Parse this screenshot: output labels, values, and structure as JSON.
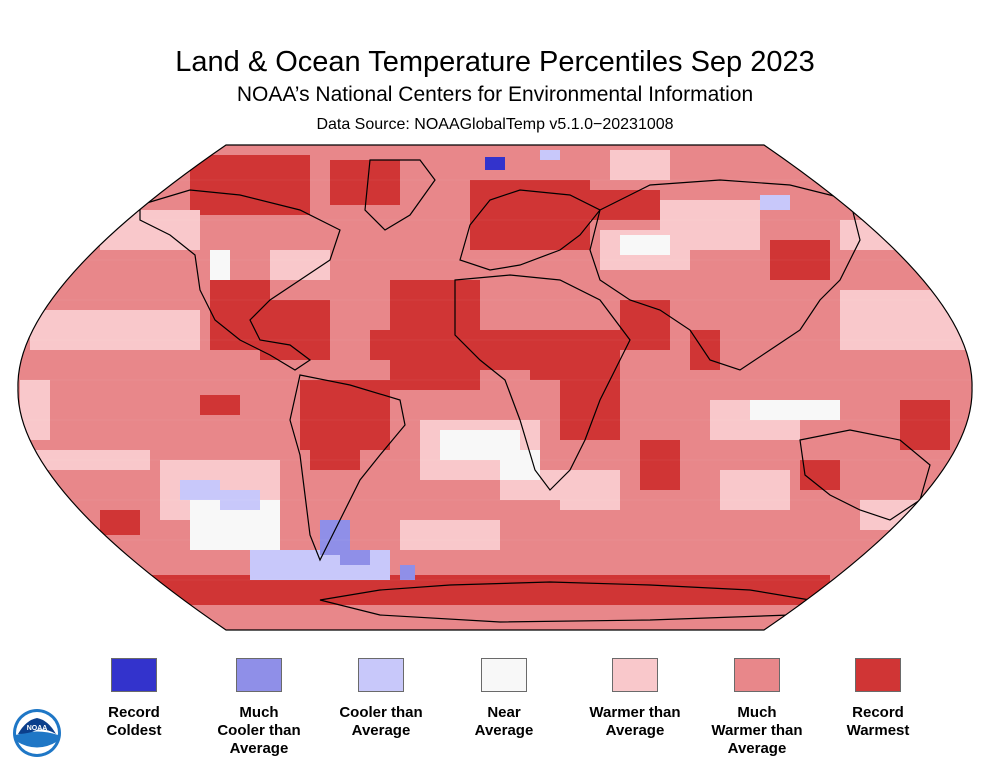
{
  "header": {
    "title": "Land & Ocean Temperature Percentiles Sep 2023",
    "subtitle": "NOAA’s National Centers for Environmental Information",
    "data_source": "Data Source: NOAAGlobalTemp v5.1.0−20231008"
  },
  "legend": [
    {
      "lines": [
        "Record",
        "Coldest"
      ],
      "color": "#3333cc"
    },
    {
      "lines": [
        "Much",
        "Cooler than",
        "Average"
      ],
      "color": "#8f8fe8"
    },
    {
      "lines": [
        "Cooler than",
        "Average"
      ],
      "color": "#c8c8fa"
    },
    {
      "lines": [
        "Near",
        "Average"
      ],
      "color": "#f8f8f8"
    },
    {
      "lines": [
        "Warmer than",
        "Average"
      ],
      "color": "#f9c8cb"
    },
    {
      "lines": [
        "Much",
        "Warmer than",
        "Average"
      ],
      "color": "#e8878a"
    },
    {
      "lines": [
        "Record",
        "Warmest"
      ],
      "color": "#d03535"
    }
  ],
  "logo": {
    "text": "NOAA",
    "icon": "noaa-logo-icon"
  }
}
